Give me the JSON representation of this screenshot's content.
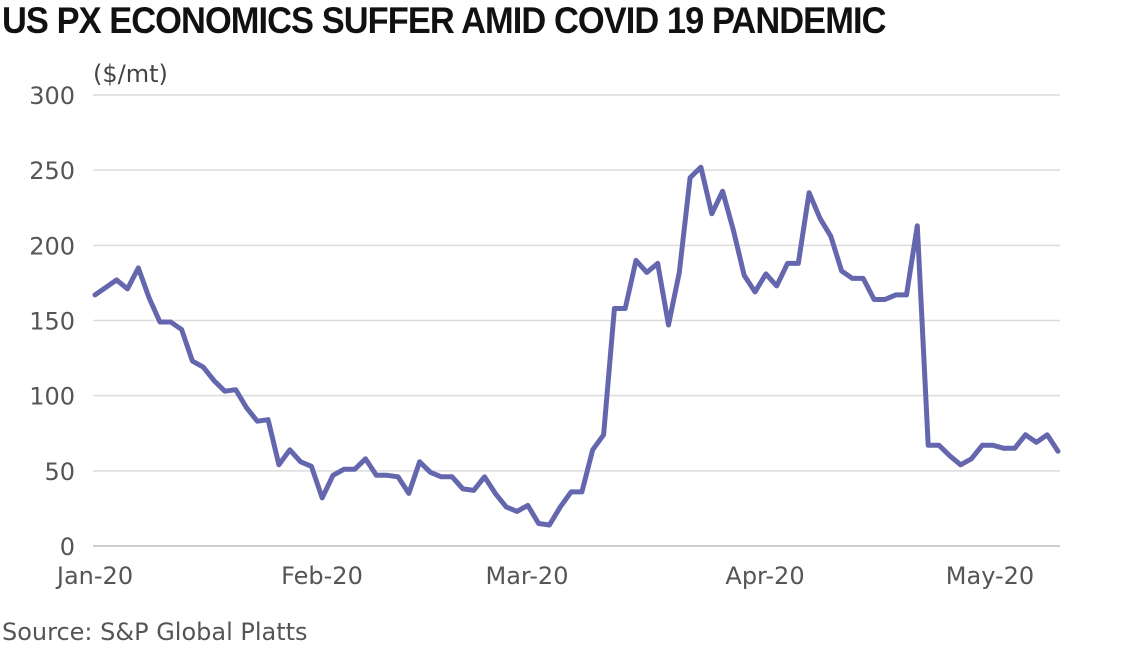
{
  "chart_data": {
    "type": "line",
    "title": "US PX ECONOMICS SUFFER AMID COVID 19 PANDEMIC",
    "ylabel": "($/mt)",
    "source": "Source: S&P Global Platts",
    "ylim": [
      0,
      300
    ],
    "yticks": [
      "0",
      "50",
      "100",
      "150",
      "200",
      "250",
      "300"
    ],
    "xticks": [
      "Jan-20",
      "Feb-20",
      "Mar-20",
      "Apr-20",
      "May-20"
    ],
    "grid": true,
    "legend": "none",
    "line_color": "#6467ad",
    "series": [
      {
        "values": [
          167,
          172,
          177,
          171,
          185,
          165,
          149,
          149,
          144,
          123,
          119,
          110,
          103,
          104,
          92,
          83,
          84,
          54,
          64,
          56,
          53,
          32,
          47,
          51,
          51,
          58,
          47,
          47,
          46,
          35,
          56,
          49,
          46,
          46,
          38,
          37,
          46,
          35,
          26,
          23,
          27,
          15,
          14,
          26,
          36,
          36,
          64,
          74,
          158,
          158,
          190,
          182,
          188,
          147,
          182,
          245,
          252,
          221,
          236,
          210,
          180,
          169,
          181,
          173,
          188,
          188,
          235,
          218,
          206,
          183,
          178,
          178,
          164,
          164,
          167,
          167,
          213,
          67,
          67,
          60,
          54,
          58,
          67,
          67,
          65,
          65,
          74,
          69,
          74,
          63
        ]
      }
    ]
  }
}
